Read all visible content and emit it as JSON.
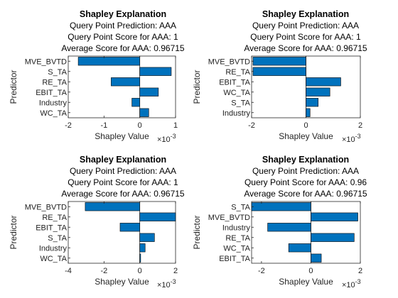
{
  "chart_data": [
    {
      "type": "bar",
      "orientation": "horizontal",
      "title": "Shapley Explanation",
      "subtitle": [
        "Query Point Prediction: AAA",
        "Query Point Score for AAA: 1",
        "Average Score for AAA: 0.96715"
      ],
      "xlabel": "Shapley Value",
      "ylabel": "Predictor",
      "x_multiplier_label": "×10",
      "x_exponent": "-3",
      "xlim": [
        -2,
        1
      ],
      "xticks": [
        "-2",
        "-1",
        "0",
        "1"
      ],
      "xtick_values": [
        -2,
        -1,
        0,
        1
      ],
      "categories": [
        "MVE_BVTD",
        "S_TA",
        "RE_TA",
        "EBIT_TA",
        "Industry",
        "WC_TA"
      ],
      "values": [
        -1.72,
        0.88,
        -0.8,
        0.52,
        -0.22,
        0.25
      ],
      "color": "#0072BD",
      "grid": false
    },
    {
      "type": "bar",
      "orientation": "horizontal",
      "title": "Shapley Explanation",
      "subtitle": [
        "Query Point Prediction: AAA",
        "Query Point Score for AAA: 1",
        "Average Score for AAA: 0.96715"
      ],
      "xlabel": "Shapley Value",
      "ylabel": "Predictor",
      "x_multiplier_label": "×10",
      "x_exponent": "-3",
      "xlim": [
        -2,
        2
      ],
      "xticks": [
        "-2",
        "0",
        "2"
      ],
      "xtick_values": [
        -2,
        0,
        2
      ],
      "categories": [
        "MVE_BVTD",
        "RE_TA",
        "EBIT_TA",
        "WC_TA",
        "S_TA",
        "Industry"
      ],
      "values": [
        -1.95,
        -1.95,
        1.28,
        0.88,
        0.45,
        0.15
      ],
      "color": "#0072BD",
      "grid": false
    },
    {
      "type": "bar",
      "orientation": "horizontal",
      "title": "Shapley Explanation",
      "subtitle": [
        "Query Point Prediction: AAA",
        "Query Point Score for AAA: 1",
        "Average Score for AAA: 0.96715"
      ],
      "xlabel": "Shapley Value",
      "ylabel": "Predictor",
      "x_multiplier_label": "×10",
      "x_exponent": "-3",
      "xlim": [
        -4,
        2
      ],
      "xticks": [
        "-4",
        "-2",
        "0",
        "2"
      ],
      "xtick_values": [
        -4,
        -2,
        0,
        2
      ],
      "categories": [
        "MVE_BVTD",
        "RE_TA",
        "EBIT_TA",
        "S_TA",
        "Industry",
        "WC_TA"
      ],
      "values": [
        -3.05,
        2.0,
        -1.1,
        0.82,
        0.3,
        0.05
      ],
      "color": "#0072BD",
      "grid": false
    },
    {
      "type": "bar",
      "orientation": "horizontal",
      "title": "Shapley Explanation",
      "subtitle": [
        "Query Point Prediction: AAA",
        "Query Point Score for AAA: 0.96",
        "Average Score for AAA: 0.96715"
      ],
      "xlabel": "Shapley Value",
      "ylabel": "Predictor",
      "x_multiplier_label": "×10",
      "x_exponent": "-3",
      "xlim": [
        -2.4,
        2
      ],
      "xticks": [
        "-2",
        "0",
        "2"
      ],
      "xtick_values": [
        -2,
        0,
        2
      ],
      "categories": [
        "S_TA",
        "MVE_BVTD",
        "Industry",
        "RE_TA",
        "WC_TA",
        "EBIT_TA"
      ],
      "values": [
        -2.4,
        1.9,
        -1.75,
        1.75,
        -0.9,
        0.42
      ],
      "color": "#0072BD",
      "grid": false
    }
  ]
}
